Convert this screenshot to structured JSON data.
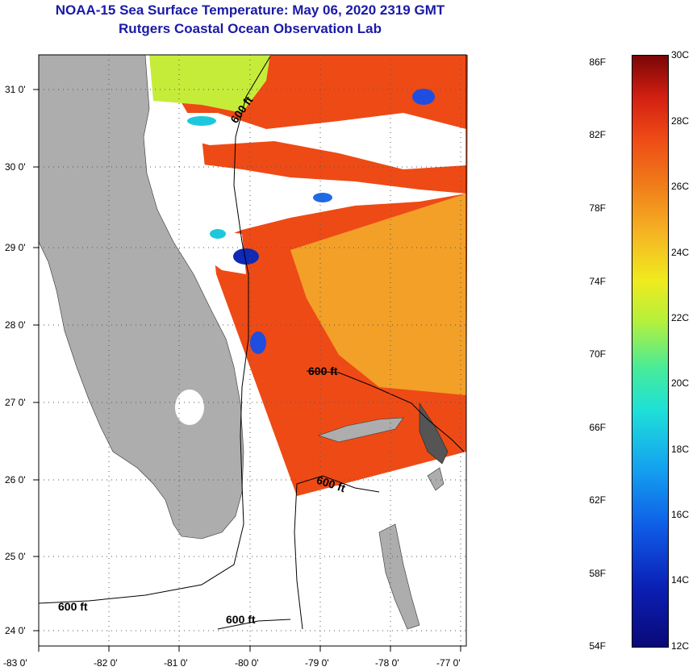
{
  "title": "NOAA-15 Sea Surface Temperature:  May 06, 2020 2319 GMT",
  "subtitle": "Rutgers Coastal Ocean Observation Lab",
  "lat_labels": [
    "31 0'",
    "30 0'",
    "29 0'",
    "28 0'",
    "27 0'",
    "26 0'",
    "25 0'",
    "24 0'"
  ],
  "lon_labels": [
    "-83 0'",
    "-82 0'",
    "-81 0'",
    "-80 0'",
    "-79 0'",
    "-78 0'",
    "-77 0'"
  ],
  "contour_label": "600 ft",
  "colorbar": {
    "fahrenheit": [
      "86F",
      "82F",
      "78F",
      "74F",
      "70F",
      "66F",
      "62F",
      "58F",
      "54F"
    ],
    "celsius": [
      "30C",
      "28C",
      "26C",
      "24C",
      "22C",
      "20C",
      "18C",
      "16C",
      "14C",
      "12C"
    ]
  },
  "colors": {
    "land": "#adadad",
    "warm": "#ee4a16",
    "orange": "#f5a623",
    "cold": "#0f2ab4",
    "title": "#1a1aa6"
  }
}
